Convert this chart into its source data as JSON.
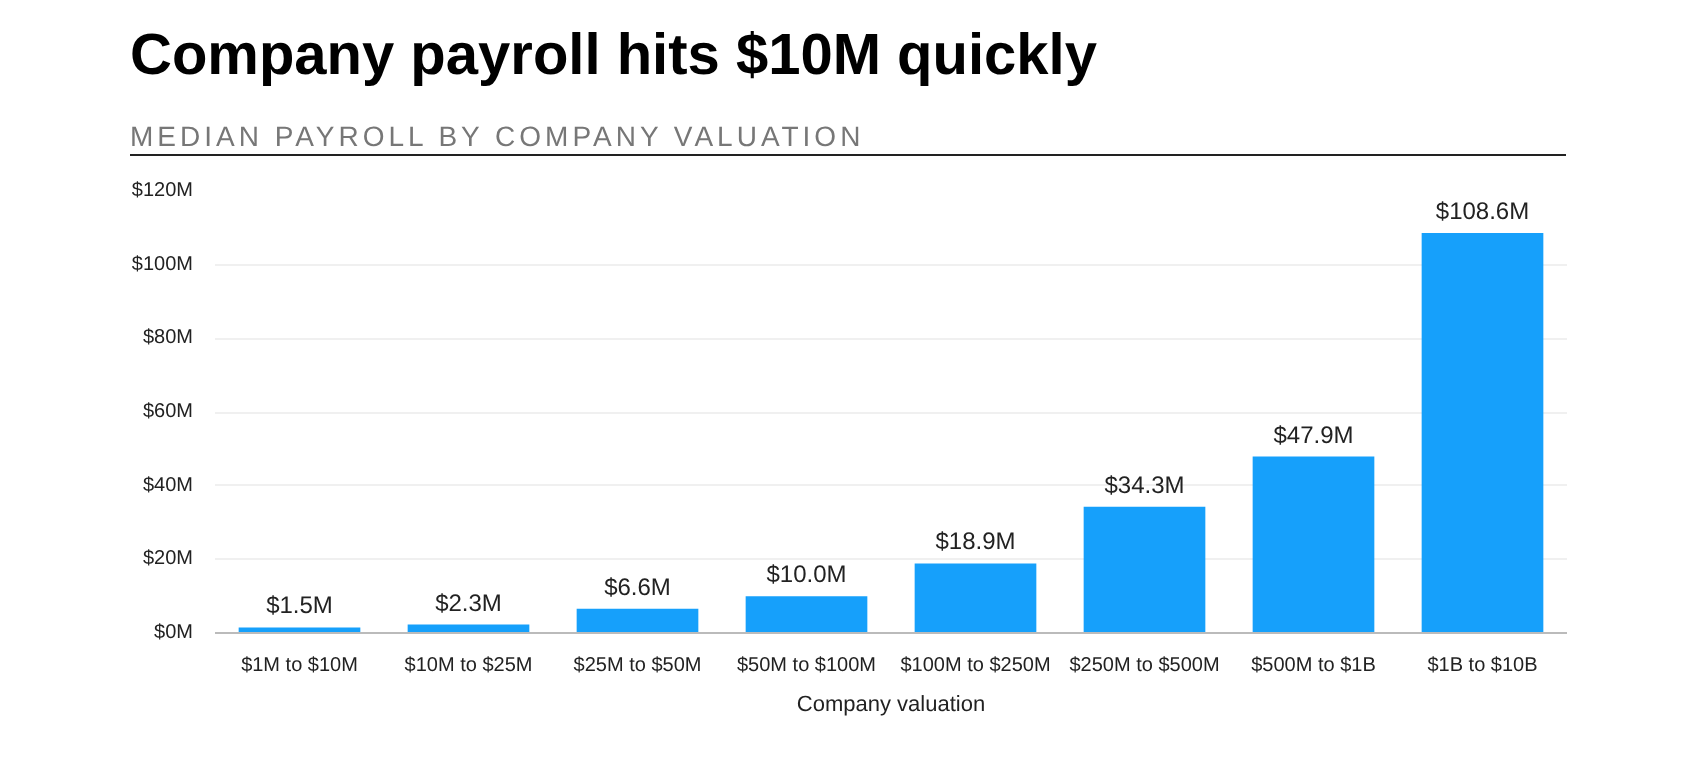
{
  "chart_data": {
    "type": "bar",
    "title": "Company payroll hits $10M quickly",
    "subtitle": "MEDIAN PAYROLL BY COMPANY VALUATION",
    "xlabel": "Company valuation",
    "categories": [
      "$1M to $10M",
      "$10M to $25M",
      "$25M to $50M",
      "$50M to $100M",
      "$100M to $250M",
      "$250M to $500M",
      "$500M to $1B",
      "$1B to $10B"
    ],
    "values": [
      1.5,
      2.3,
      6.6,
      10.0,
      18.9,
      34.3,
      47.9,
      108.6
    ],
    "value_labels": [
      "$1.5M",
      "$2.3M",
      "$6.6M",
      "$10.0M",
      "$18.9M",
      "$34.3M",
      "$47.9M",
      "$108.6M"
    ],
    "color": "#16a0fb",
    "ylim": [
      0,
      120
    ],
    "yticks": [
      {
        "value": 0,
        "label": "$0M"
      },
      {
        "value": 20,
        "label": "$20M"
      },
      {
        "value": 40,
        "label": "$40M"
      },
      {
        "value": 60,
        "label": "$60M"
      },
      {
        "value": 80,
        "label": "$80M"
      },
      {
        "value": 100,
        "label": "$100M"
      },
      {
        "value": 120,
        "label": "$120M"
      }
    ],
    "grid": "y"
  }
}
